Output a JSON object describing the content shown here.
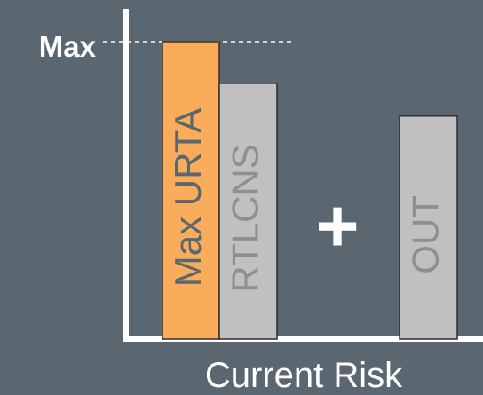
{
  "chart_data": {
    "type": "bar",
    "title": "",
    "xlabel": "Current Risk",
    "ylabel": "",
    "max_label": "Max",
    "operator": "+",
    "ylim": [
      0,
      100
    ],
    "max_value": 100,
    "bars": [
      {
        "name": "Max URTA",
        "value": 100,
        "color": "#f9ad5b"
      },
      {
        "name": "RTLCNS",
        "value": 86,
        "color": "#c0c0c0"
      },
      {
        "name": "OUT",
        "value": 75,
        "color": "#c0c0c0"
      }
    ],
    "colors": {
      "background": "#5a6670",
      "axis": "#ffffff",
      "max_line": "#ffffff",
      "text_light": "#ffffff",
      "bar_text_on_accent": "#5a6670",
      "bar_text_on_gray": "#8f8f8f",
      "bar_border": "#2f2f2f"
    }
  }
}
